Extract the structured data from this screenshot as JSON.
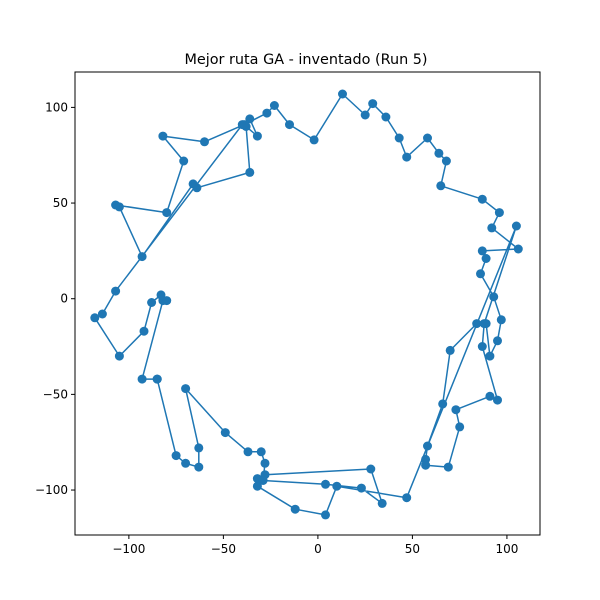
{
  "chart_data": {
    "type": "line",
    "title": "Mejor ruta GA - inventado (Run 5)",
    "xlabel": "",
    "ylabel": "",
    "xlim": [
      -128.5,
      117.5
    ],
    "ylim": [
      -123.5,
      118.5
    ],
    "xticks": [
      -100,
      -50,
      0,
      50,
      100
    ],
    "yticks": [
      -100,
      -50,
      0,
      50,
      100
    ],
    "grid": false,
    "marker": "circle",
    "color": "#1f77b4",
    "series": [
      {
        "points": [
          [
            -85,
            -42
          ],
          [
            -93,
            -42
          ],
          [
            -82,
            -1
          ],
          [
            -80,
            -1
          ],
          [
            -83,
            2
          ],
          [
            -88,
            -2
          ],
          [
            -92,
            -17
          ],
          [
            -105,
            -30
          ],
          [
            -118,
            -10
          ],
          [
            -114,
            -8
          ],
          [
            -107,
            4
          ],
          [
            -40,
            91
          ],
          [
            -36,
            94
          ],
          [
            -32,
            85
          ],
          [
            -38,
            90
          ],
          [
            -36,
            66
          ],
          [
            -64,
            58
          ],
          [
            -66,
            60
          ],
          [
            -93,
            22
          ],
          [
            -105,
            48
          ],
          [
            -107,
            49
          ],
          [
            -80,
            45
          ],
          [
            -71,
            72
          ],
          [
            -82,
            85
          ],
          [
            -60,
            82
          ],
          [
            -39,
            91
          ],
          [
            -27,
            97
          ],
          [
            -23,
            101
          ],
          [
            -15,
            91
          ],
          [
            -2,
            83
          ],
          [
            13,
            107
          ],
          [
            25,
            96
          ],
          [
            29,
            102
          ],
          [
            36,
            95
          ],
          [
            43,
            84
          ],
          [
            47,
            74
          ],
          [
            58,
            84
          ],
          [
            64,
            76
          ],
          [
            68,
            72
          ],
          [
            65,
            59
          ],
          [
            87,
            52
          ],
          [
            96,
            45
          ],
          [
            92,
            37
          ],
          [
            106,
            26
          ],
          [
            87,
            25
          ],
          [
            89,
            21
          ],
          [
            86,
            13
          ],
          [
            93,
            1
          ],
          [
            97,
            -11
          ],
          [
            95,
            -22
          ],
          [
            91,
            -30
          ],
          [
            89,
            -13
          ],
          [
            84,
            -13
          ],
          [
            70,
            -27
          ],
          [
            66,
            -55
          ],
          [
            58,
            -77
          ],
          [
            57,
            -84
          ],
          [
            57,
            -87
          ],
          [
            69,
            -88
          ],
          [
            75,
            -67
          ],
          [
            73,
            -58
          ],
          [
            91,
            -51
          ],
          [
            95,
            -53
          ],
          [
            87,
            -25
          ],
          [
            88,
            -13
          ],
          [
            105,
            38
          ],
          [
            47,
            -104
          ],
          [
            10,
            -98
          ],
          [
            4,
            -113
          ],
          [
            -12,
            -110
          ],
          [
            -32,
            -98
          ],
          [
            -32,
            -94
          ],
          [
            -28,
            -92
          ],
          [
            28,
            -89
          ],
          [
            34,
            -107
          ],
          [
            23,
            -99
          ],
          [
            4,
            -97
          ],
          [
            -29,
            -95
          ],
          [
            -28,
            -86
          ],
          [
            -30,
            -80
          ],
          [
            -37,
            -80
          ],
          [
            -49,
            -70
          ],
          [
            -70,
            -47
          ],
          [
            -63,
            -78
          ],
          [
            -63,
            -88
          ],
          [
            -70,
            -86
          ],
          [
            -75,
            -82
          ],
          [
            -85,
            -42
          ]
        ]
      }
    ]
  }
}
